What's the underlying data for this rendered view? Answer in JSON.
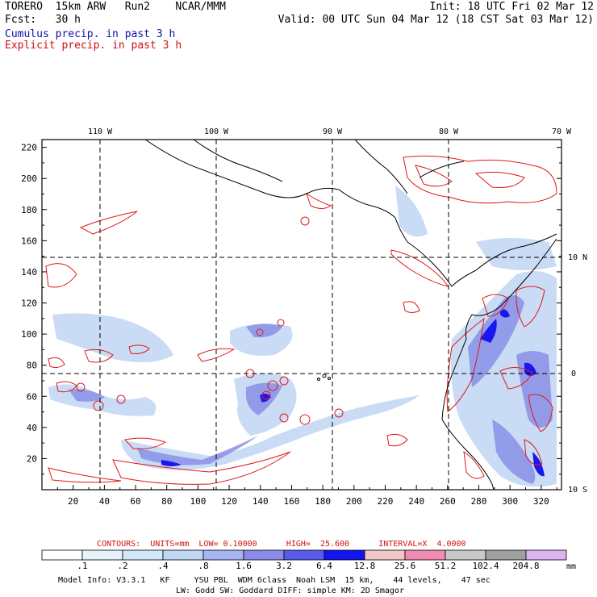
{
  "header": {
    "model": "TORERO  15km ARW   Run2    NCAR/MMM",
    "init": "Init: 18 UTC Fri 02 Mar 12",
    "fcst": "Fcst:   30 h",
    "valid": "Valid: 00 UTC Sun 04 Mar 12 (18 CST Sat 03 Mar 12)",
    "legend_blue": "Cumulus precip. in past 3 h",
    "legend_red": "Explicit precip. in past 3 h"
  },
  "map": {
    "lon_labels": [
      "110 W",
      "100 W",
      "90 W",
      "80 W",
      "70 W"
    ],
    "lat_labels": [
      "10 N",
      "0",
      "10 S"
    ],
    "x_ticks": [
      "20",
      "40",
      "60",
      "80",
      "100",
      "120",
      "140",
      "160",
      "180",
      "200",
      "220",
      "240",
      "260",
      "280",
      "300",
      "320"
    ],
    "y_ticks": [
      "20",
      "40",
      "60",
      "80",
      "100",
      "120",
      "140",
      "160",
      "180",
      "200",
      "220"
    ]
  },
  "contours": {
    "text": "CONTOURS:  UNITS=mm  LOW= 0.10000      HIGH=  25.600      INTERVAL=X  4.0000"
  },
  "colorbar": {
    "labels": [
      ".1",
      ".2",
      ".4",
      ".8",
      "1.6",
      "3.2",
      "6.4",
      "12.8",
      "25.6",
      "51.2",
      "102.4",
      "204.8"
    ],
    "unit": "mm",
    "colors": [
      "#ffffff",
      "#e6f2fa",
      "#d2e8f8",
      "#bed8f4",
      "#a8b4f0",
      "#8a8ce8",
      "#5a5aeb",
      "#1414ee",
      "#f0c8c8",
      "#f08cb4",
      "#c8c8c8",
      "#a0a0a0",
      "#dcb4f0"
    ]
  },
  "footer": {
    "line1": "Model Info: V3.3.1   KF     YSU PBL  WDM 6class  Noah LSM  15 km,    44 levels,    47 sec",
    "line2": "LW: Godd SW: Goddard DIFF: simple KM: 2D Smagor"
  }
}
